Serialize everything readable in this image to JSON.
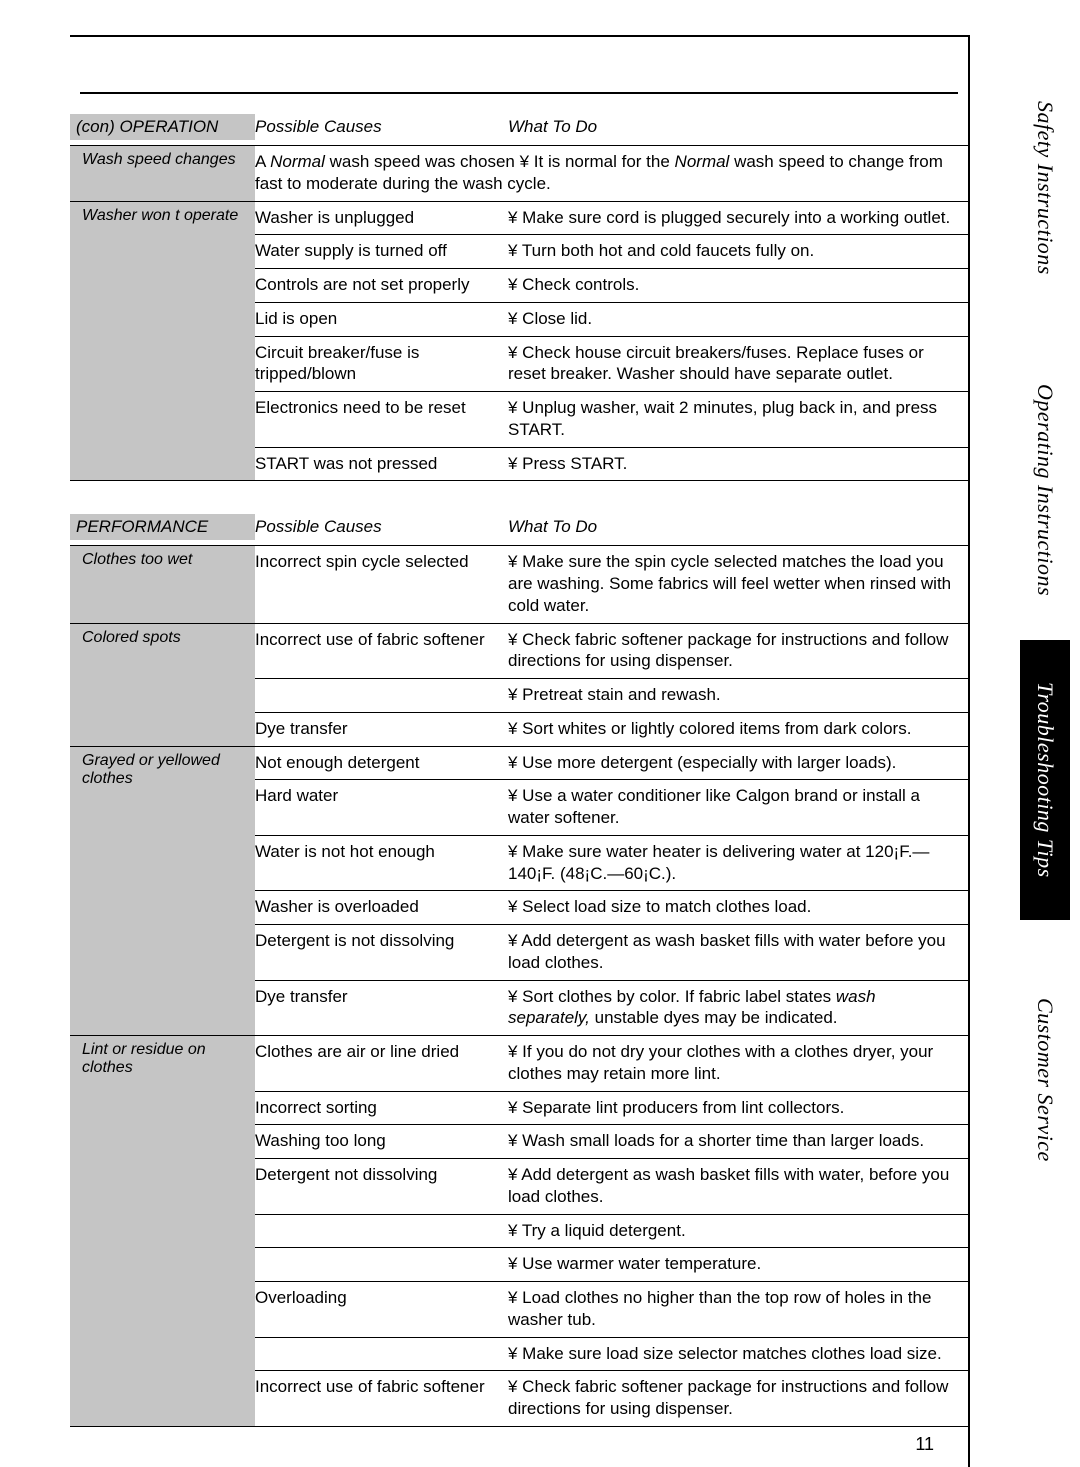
{
  "page_number": "11",
  "tabs": [
    {
      "label": "Safety Instructions",
      "dark": false
    },
    {
      "label": "Operating Instructions",
      "dark": false
    },
    {
      "label": "Troubleshooting Tips",
      "dark": true
    },
    {
      "label": "Customer Service",
      "dark": false
    }
  ],
  "headers": {
    "cause": "Possible Causes",
    "action": "What To Do"
  },
  "sections": [
    {
      "title": "(con) OPERATION",
      "problems": [
        {
          "label": "Wash speed changes",
          "rows": [
            {
              "cause_html": "A <span class='ital'>Normal</span> wash speed was chosen",
              "action_html": "¥ It is normal for the <span class='ital'>Normal</span> wash speed to change from fast to moderate during the wash cycle.",
              "merge": true
            }
          ]
        },
        {
          "label": "Washer won t operate",
          "rows": [
            {
              "cause": "Washer is unplugged",
              "action": "¥ Make sure cord is plugged securely into a working outlet."
            },
            {
              "cause": "Water supply is turned off",
              "action": "¥ Turn both hot and cold faucets fully on."
            },
            {
              "cause": "Controls are not set properly",
              "action": "¥ Check controls."
            },
            {
              "cause": "Lid is open",
              "action": "¥ Close lid."
            },
            {
              "cause": "Circuit breaker/fuse is tripped/blown",
              "action": "¥ Check house circuit breakers/fuses. Replace fuses or reset breaker. Washer should have separate outlet."
            },
            {
              "cause": "Electronics need to be reset",
              "action": "¥ Unplug washer, wait 2 minutes, plug back in, and press START."
            },
            {
              "cause": "START was not pressed",
              "action": "¥ Press START."
            }
          ]
        }
      ]
    },
    {
      "title": "PERFORMANCE",
      "problems": [
        {
          "label": "Clothes too wet",
          "rows": [
            {
              "cause": "Incorrect spin cycle selected",
              "action": "¥ Make sure the spin cycle selected matches the load you are washing. Some fabrics will feel wetter when rinsed with cold water."
            }
          ]
        },
        {
          "label": "Colored spots",
          "rows": [
            {
              "cause": "Incorrect use of fabric softener",
              "action": "¥ Check fabric softener package for instructions and follow directions for using dispenser."
            },
            {
              "cause": "",
              "action": "¥ Pretreat stain and rewash."
            },
            {
              "cause": "Dye transfer",
              "action": "¥ Sort whites or lightly colored items from dark colors."
            }
          ]
        },
        {
          "label": "Grayed or yellowed clothes",
          "rows": [
            {
              "cause": "Not enough detergent",
              "action": "¥ Use more detergent (especially with larger loads)."
            },
            {
              "cause": "Hard water",
              "action": "¥ Use a water conditioner like Calgon brand or install a water softener."
            },
            {
              "cause": "Water is not hot enough",
              "action": "¥ Make sure water heater is delivering water at 120¡F.—140¡F. (48¡C.—60¡C.)."
            },
            {
              "cause": "Washer is overloaded",
              "action": "¥ Select load size to match clothes load."
            },
            {
              "cause": "Detergent is not dissolving",
              "action": "¥ Add detergent as wash basket fills with water before you load clothes."
            },
            {
              "cause": "Dye transfer",
              "action_html": "¥ Sort clothes by color. If fabric label states <span class='ital'>wash separately,</span> unstable dyes may be indicated."
            }
          ]
        },
        {
          "label": "Lint or residue on clothes",
          "rows": [
            {
              "cause": "Clothes are air or line dried",
              "action": "¥ If you do not dry your clothes with a clothes dryer, your clothes may retain more lint."
            },
            {
              "cause": "Incorrect sorting",
              "action": "¥ Separate lint producers from lint collectors."
            },
            {
              "cause": "Washing too long",
              "action": "¥ Wash small loads for a shorter time than larger loads."
            },
            {
              "cause": "Detergent not dissolving",
              "action": "¥ Add detergent as wash basket fills with water, before you load clothes."
            },
            {
              "cause": "",
              "action": "¥ Try a liquid detergent."
            },
            {
              "cause": "",
              "action": "¥ Use warmer water temperature."
            },
            {
              "cause": "Overloading",
              "action": "¥ Load clothes no higher than the top row of holes in the washer tub."
            },
            {
              "cause": "",
              "action": "¥ Make sure load size selector matches clothes load size."
            },
            {
              "cause": "Incorrect use of fabric softener",
              "action": "¥ Check fabric softener package for instructions and follow directions for using dispenser."
            }
          ]
        }
      ]
    }
  ]
}
